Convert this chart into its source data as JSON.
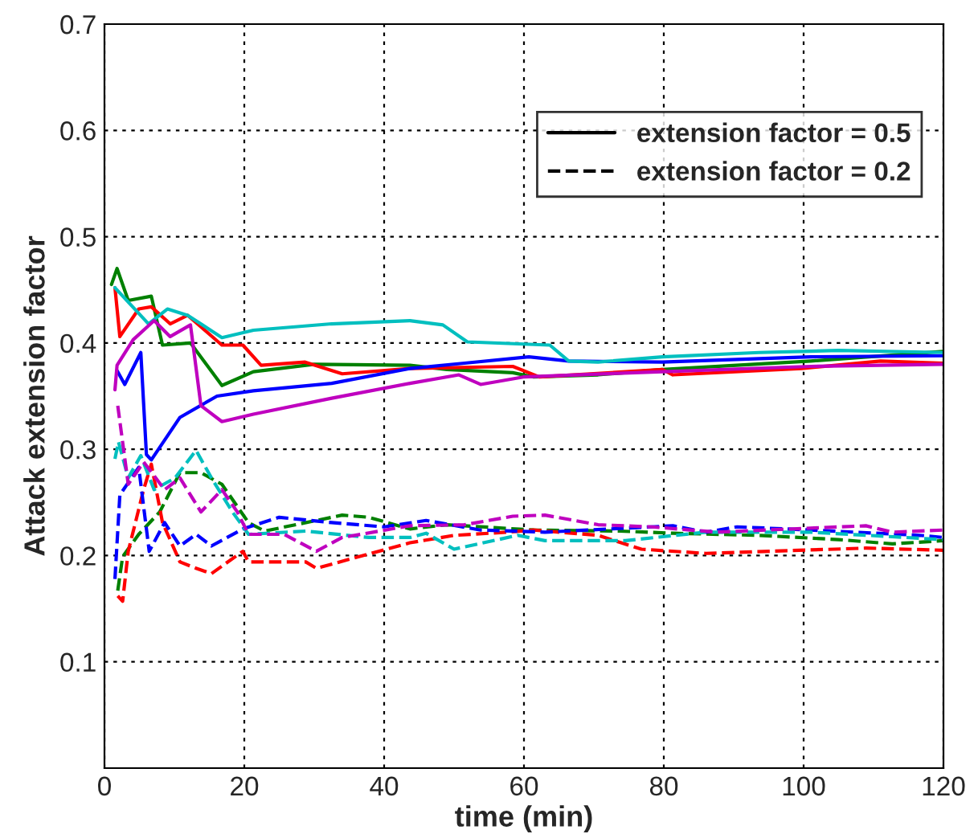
{
  "chart_data": {
    "type": "line",
    "xlabel": "time (min)",
    "ylabel": "Attack extension factor",
    "xlim": [
      0,
      120
    ],
    "xticks": [
      0,
      20,
      40,
      60,
      80,
      100,
      120
    ],
    "ylim": [
      0,
      0.7
    ],
    "yticks": [
      0.1,
      0.2,
      0.3,
      0.4,
      0.5,
      0.6,
      0.7
    ],
    "annotations": [
      "extension factor = 0.5",
      "extension factor = 0.2"
    ],
    "grid": true,
    "marker": "none",
    "series": [
      {
        "color": "#008000",
        "line_style": "solid",
        "x": [
          1,
          1.8,
          3.4,
          6.7,
          8.3,
          12.3,
          16.8,
          21.3,
          30,
          43.7,
          49,
          58.4,
          61.4,
          70.6,
          79.8,
          101,
          120
        ],
        "values": [
          0.455,
          0.47,
          0.44,
          0.444,
          0.398,
          0.4,
          0.36,
          0.373,
          0.38,
          0.379,
          0.375,
          0.372,
          0.368,
          0.37,
          0.375,
          0.383,
          0.392
        ]
      },
      {
        "color": "#ff0000",
        "line_style": "solid",
        "x": [
          1.5,
          2.2,
          4.9,
          6.7,
          9.4,
          11.9,
          16.8,
          19.8,
          22.4,
          28.7,
          34,
          43.7,
          58.4,
          62.2,
          79.8,
          81.3,
          99.7,
          111,
          120
        ],
        "values": [
          0.452,
          0.406,
          0.432,
          0.434,
          0.418,
          0.426,
          0.398,
          0.398,
          0.379,
          0.382,
          0.371,
          0.376,
          0.378,
          0.368,
          0.375,
          0.37,
          0.376,
          0.383,
          0.381
        ]
      },
      {
        "color": "#0000ff",
        "line_style": "solid",
        "x": [
          1.8,
          2.9,
          5.2,
          6,
          6.7,
          10.8,
          16.1,
          21.3,
          32.5,
          43.7,
          51.5,
          60.7,
          66.4,
          79.8,
          101,
          120
        ],
        "values": [
          0.374,
          0.361,
          0.391,
          0.295,
          0.29,
          0.33,
          0.35,
          0.355,
          0.362,
          0.376,
          0.381,
          0.387,
          0.383,
          0.382,
          0.387,
          0.388
        ]
      },
      {
        "color": "#00bfbf",
        "line_style": "solid",
        "x": [
          1.5,
          6.3,
          9,
          11.9,
          16.8,
          21.3,
          32.5,
          43.7,
          48.4,
          51.9,
          63.7,
          66.4,
          70.6,
          79.8,
          93.6,
          105,
          120
        ],
        "values": [
          0.452,
          0.418,
          0.432,
          0.426,
          0.405,
          0.412,
          0.418,
          0.421,
          0.417,
          0.401,
          0.398,
          0.383,
          0.382,
          0.387,
          0.391,
          0.393,
          0.391
        ]
      },
      {
        "color": "#bf00bf",
        "line_style": "solid",
        "x": [
          1.5,
          1.8,
          4.1,
          7.1,
          9.4,
          12.3,
          13.8,
          16.8,
          21.3,
          32.5,
          43.7,
          50.7,
          53.8,
          59.9,
          79.8,
          101,
          120
        ],
        "values": [
          0.356,
          0.379,
          0.403,
          0.421,
          0.406,
          0.417,
          0.341,
          0.326,
          0.333,
          0.348,
          0.362,
          0.37,
          0.361,
          0.368,
          0.373,
          0.378,
          0.38
        ]
      },
      {
        "color": "#008000",
        "line_style": "dashed",
        "x": [
          1.9,
          2.6,
          4.9,
          7.9,
          10.8,
          13.8,
          16.8,
          20.6,
          22.9,
          34,
          37.8,
          43.7,
          49,
          61.4,
          73.7,
          81.3,
          93.6,
          105,
          112.7,
          120
        ],
        "values": [
          0.167,
          0.199,
          0.22,
          0.241,
          0.278,
          0.278,
          0.267,
          0.231,
          0.223,
          0.238,
          0.236,
          0.225,
          0.229,
          0.224,
          0.223,
          0.221,
          0.219,
          0.215,
          0.211,
          0.214
        ]
      },
      {
        "color": "#ff0000",
        "line_style": "dashed",
        "x": [
          1.9,
          2.6,
          3.4,
          5.6,
          6.7,
          8.3,
          10.8,
          13.1,
          15.3,
          19.8,
          20.6,
          28.8,
          30.3,
          43.7,
          50,
          57.6,
          61.4,
          70.6,
          76.8,
          86,
          108.9,
          120
        ],
        "values": [
          0.162,
          0.157,
          0.204,
          0.262,
          0.286,
          0.231,
          0.194,
          0.188,
          0.183,
          0.204,
          0.194,
          0.194,
          0.188,
          0.212,
          0.219,
          0.222,
          0.224,
          0.219,
          0.206,
          0.202,
          0.207,
          0.205
        ]
      },
      {
        "color": "#0000ff",
        "line_style": "dashed",
        "x": [
          1.5,
          2.2,
          4.9,
          6.4,
          8.6,
          10.8,
          13.1,
          15.3,
          19.8,
          25,
          32.5,
          40,
          46,
          53.8,
          63,
          81.3,
          86,
          90.5,
          101,
          116.6,
          120
        ],
        "values": [
          0.178,
          0.257,
          0.283,
          0.204,
          0.231,
          0.209,
          0.22,
          0.209,
          0.225,
          0.236,
          0.231,
          0.227,
          0.233,
          0.224,
          0.222,
          0.228,
          0.222,
          0.227,
          0.224,
          0.219,
          0.217
        ]
      },
      {
        "color": "#00bfbf",
        "line_style": "dashed",
        "x": [
          1.5,
          2,
          3.4,
          5.2,
          7.1,
          10.1,
          13.1,
          15.3,
          18.3,
          20.6,
          28.8,
          37.8,
          43.7,
          46,
          50,
          59.1,
          63,
          74.5,
          86,
          101,
          120
        ],
        "values": [
          0.291,
          0.307,
          0.273,
          0.294,
          0.262,
          0.273,
          0.299,
          0.273,
          0.241,
          0.22,
          0.223,
          0.217,
          0.217,
          0.221,
          0.206,
          0.219,
          0.214,
          0.214,
          0.222,
          0.222,
          0.215
        ]
      },
      {
        "color": "#bf00bf",
        "line_style": "dashed",
        "x": [
          1.9,
          3.4,
          5.6,
          8.6,
          10.8,
          13.8,
          16.8,
          19,
          20.6,
          25.7,
          30.3,
          34,
          43.7,
          51.5,
          58.4,
          63,
          70.6,
          78.3,
          87.5,
          108.9,
          112.7,
          120
        ],
        "values": [
          0.341,
          0.267,
          0.288,
          0.262,
          0.273,
          0.241,
          0.262,
          0.241,
          0.22,
          0.22,
          0.204,
          0.217,
          0.228,
          0.229,
          0.237,
          0.238,
          0.229,
          0.227,
          0.222,
          0.228,
          0.222,
          0.224
        ]
      }
    ]
  }
}
